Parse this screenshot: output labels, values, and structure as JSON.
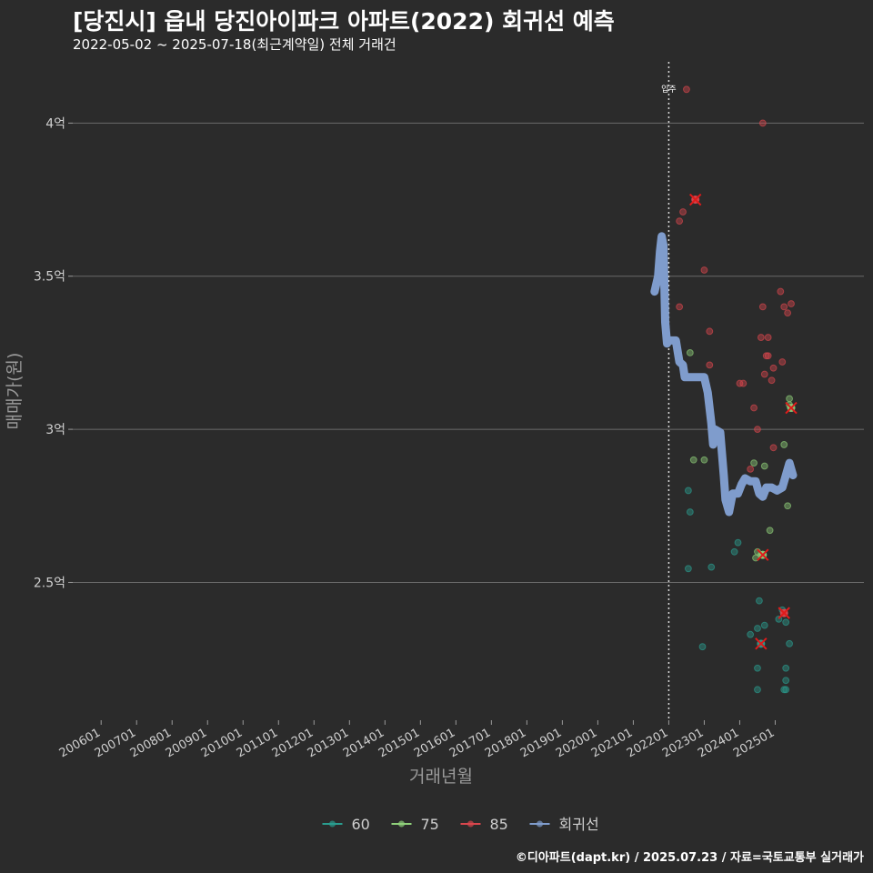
{
  "header": {
    "title": "[당진시] 읍내 당진아이파크 아파트(2022) 회귀선 예측",
    "subtitle": "2022-05-02 ~ 2025-07-18(최근계약일) 전체 거래건"
  },
  "footer": {
    "credit": "©디아파트(dapt.kr) / 2025.07.23 / 자료=국토교통부 실거래가"
  },
  "chart_data": {
    "type": "scatter",
    "title": "[당진시] 읍내 당진아이파크 아파트(2022) 회귀선 예측",
    "xlabel": "거래년월",
    "ylabel": "매매가(원)",
    "x_range": [
      2005.2,
      2027.5
    ],
    "ylim": [
      2.05,
      4.2
    ],
    "grid": true,
    "y_ticks": [
      {
        "value": 2.5,
        "label": "2.5억"
      },
      {
        "value": 3.0,
        "label": "3억"
      },
      {
        "value": 3.5,
        "label": "3.5억"
      },
      {
        "value": 4.0,
        "label": "4억"
      }
    ],
    "x_ticks": [
      {
        "value": 2006,
        "label": "200601"
      },
      {
        "value": 2007,
        "label": "200701"
      },
      {
        "value": 2008,
        "label": "200801"
      },
      {
        "value": 2009,
        "label": "200901"
      },
      {
        "value": 2010,
        "label": "201001"
      },
      {
        "value": 2011,
        "label": "201101"
      },
      {
        "value": 2012,
        "label": "201201"
      },
      {
        "value": 2013,
        "label": "201301"
      },
      {
        "value": 2014,
        "label": "201401"
      },
      {
        "value": 2015,
        "label": "201501"
      },
      {
        "value": 2016,
        "label": "201601"
      },
      {
        "value": 2017,
        "label": "201701"
      },
      {
        "value": 2018,
        "label": "201801"
      },
      {
        "value": 2019,
        "label": "201901"
      },
      {
        "value": 2020,
        "label": "202001"
      },
      {
        "value": 2021,
        "label": "202101"
      },
      {
        "value": 2022,
        "label": "202201"
      },
      {
        "value": 2023,
        "label": "202301"
      },
      {
        "value": 2024,
        "label": "202401"
      },
      {
        "value": 2025,
        "label": "202501"
      }
    ],
    "annotation": {
      "x": 2022.0,
      "label": "입주"
    },
    "legend": {
      "position": "bottom",
      "items": [
        {
          "label": "60",
          "color": "#2a9d8f"
        },
        {
          "label": "75",
          "color": "#8fd07a"
        },
        {
          "label": "85",
          "color": "#d9464d"
        },
        {
          "label": "회귀선",
          "color": "#7f9ccc"
        }
      ]
    },
    "series": [
      {
        "name": "60",
        "color": "#2a9d8f",
        "points": [
          [
            2022.55,
            2.8
          ],
          [
            2022.6,
            2.73
          ],
          [
            2022.55,
            2.545
          ],
          [
            2022.95,
            2.29
          ],
          [
            2023.2,
            2.55
          ],
          [
            2023.85,
            2.6
          ],
          [
            2023.95,
            2.63
          ],
          [
            2024.3,
            2.33
          ],
          [
            2024.5,
            2.35
          ],
          [
            2024.5,
            2.22
          ],
          [
            2024.5,
            2.15
          ],
          [
            2024.55,
            2.44
          ],
          [
            2024.7,
            2.36
          ],
          [
            2025.1,
            2.38
          ],
          [
            2025.2,
            2.41
          ],
          [
            2025.3,
            2.37
          ],
          [
            2025.3,
            2.22
          ],
          [
            2025.3,
            2.18
          ],
          [
            2025.25,
            2.15
          ],
          [
            2025.3,
            2.15
          ],
          [
            2025.4,
            2.3
          ]
        ]
      },
      {
        "name": "75",
        "color": "#8fd07a",
        "points": [
          [
            2022.6,
            3.25
          ],
          [
            2022.7,
            2.9
          ],
          [
            2023.0,
            2.9
          ],
          [
            2024.4,
            2.89
          ],
          [
            2024.45,
            2.58
          ],
          [
            2024.5,
            2.6
          ],
          [
            2024.6,
            2.59
          ],
          [
            2024.7,
            2.88
          ],
          [
            2024.85,
            2.67
          ],
          [
            2025.25,
            2.95
          ],
          [
            2025.4,
            3.1
          ],
          [
            2025.4,
            3.08
          ],
          [
            2025.35,
            2.75
          ]
        ]
      },
      {
        "name": "85",
        "color": "#d9464d",
        "points": [
          [
            2022.5,
            4.11
          ],
          [
            2022.3,
            3.68
          ],
          [
            2022.4,
            3.71
          ],
          [
            2022.3,
            3.4
          ],
          [
            2022.75,
            3.75
          ],
          [
            2023.0,
            3.52
          ],
          [
            2023.15,
            3.32
          ],
          [
            2023.15,
            3.21
          ],
          [
            2024.0,
            3.15
          ],
          [
            2024.1,
            3.15
          ],
          [
            2024.4,
            3.07
          ],
          [
            2024.5,
            3.0
          ],
          [
            2024.6,
            3.3
          ],
          [
            2024.65,
            3.4
          ],
          [
            2024.7,
            3.18
          ],
          [
            2024.75,
            3.24
          ],
          [
            2024.8,
            3.24
          ],
          [
            2024.8,
            3.3
          ],
          [
            2024.9,
            3.16
          ],
          [
            2024.95,
            3.2
          ],
          [
            2024.95,
            2.94
          ],
          [
            2025.15,
            3.45
          ],
          [
            2025.2,
            3.22
          ],
          [
            2025.25,
            3.4
          ],
          [
            2025.35,
            3.38
          ],
          [
            2025.45,
            3.41
          ],
          [
            2024.65,
            4.0
          ],
          [
            2024.3,
            2.87
          ],
          [
            2025.25,
            2.4
          ],
          [
            2024.6,
            2.3
          ]
        ]
      }
    ],
    "recent_deals": [
      {
        "series": "85",
        "x": 2022.75,
        "y": 3.75
      },
      {
        "series": "75",
        "x": 2025.45,
        "y": 3.07
      },
      {
        "series": "75",
        "x": 2024.65,
        "y": 2.59
      },
      {
        "series": "85",
        "x": 2025.25,
        "y": 2.4
      },
      {
        "series": "60",
        "x": 2024.6,
        "y": 2.3
      }
    ],
    "regression": {
      "name": "회귀선",
      "color": "#7f9ccc",
      "points": [
        [
          2021.6,
          3.45
        ],
        [
          2021.7,
          3.5
        ],
        [
          2021.75,
          3.58
        ],
        [
          2021.8,
          3.63
        ],
        [
          2021.85,
          3.6
        ],
        [
          2021.9,
          3.35
        ],
        [
          2021.95,
          3.28
        ],
        [
          2022.0,
          3.29
        ],
        [
          2022.2,
          3.29
        ],
        [
          2022.3,
          3.22
        ],
        [
          2022.4,
          3.21
        ],
        [
          2022.45,
          3.17
        ],
        [
          2022.8,
          3.17
        ],
        [
          2023.0,
          3.17
        ],
        [
          2023.1,
          3.12
        ],
        [
          2023.2,
          3.02
        ],
        [
          2023.25,
          2.95
        ],
        [
          2023.3,
          3.0
        ],
        [
          2023.45,
          2.99
        ],
        [
          2023.55,
          2.85
        ],
        [
          2023.6,
          2.77
        ],
        [
          2023.7,
          2.73
        ],
        [
          2023.8,
          2.79
        ],
        [
          2023.95,
          2.79
        ],
        [
          2024.05,
          2.82
        ],
        [
          2024.15,
          2.84
        ],
        [
          2024.3,
          2.83
        ],
        [
          2024.45,
          2.83
        ],
        [
          2024.55,
          2.79
        ],
        [
          2024.65,
          2.78
        ],
        [
          2024.75,
          2.81
        ],
        [
          2024.9,
          2.81
        ],
        [
          2025.05,
          2.8
        ],
        [
          2025.2,
          2.81
        ],
        [
          2025.3,
          2.85
        ],
        [
          2025.4,
          2.89
        ],
        [
          2025.5,
          2.85
        ]
      ]
    }
  }
}
